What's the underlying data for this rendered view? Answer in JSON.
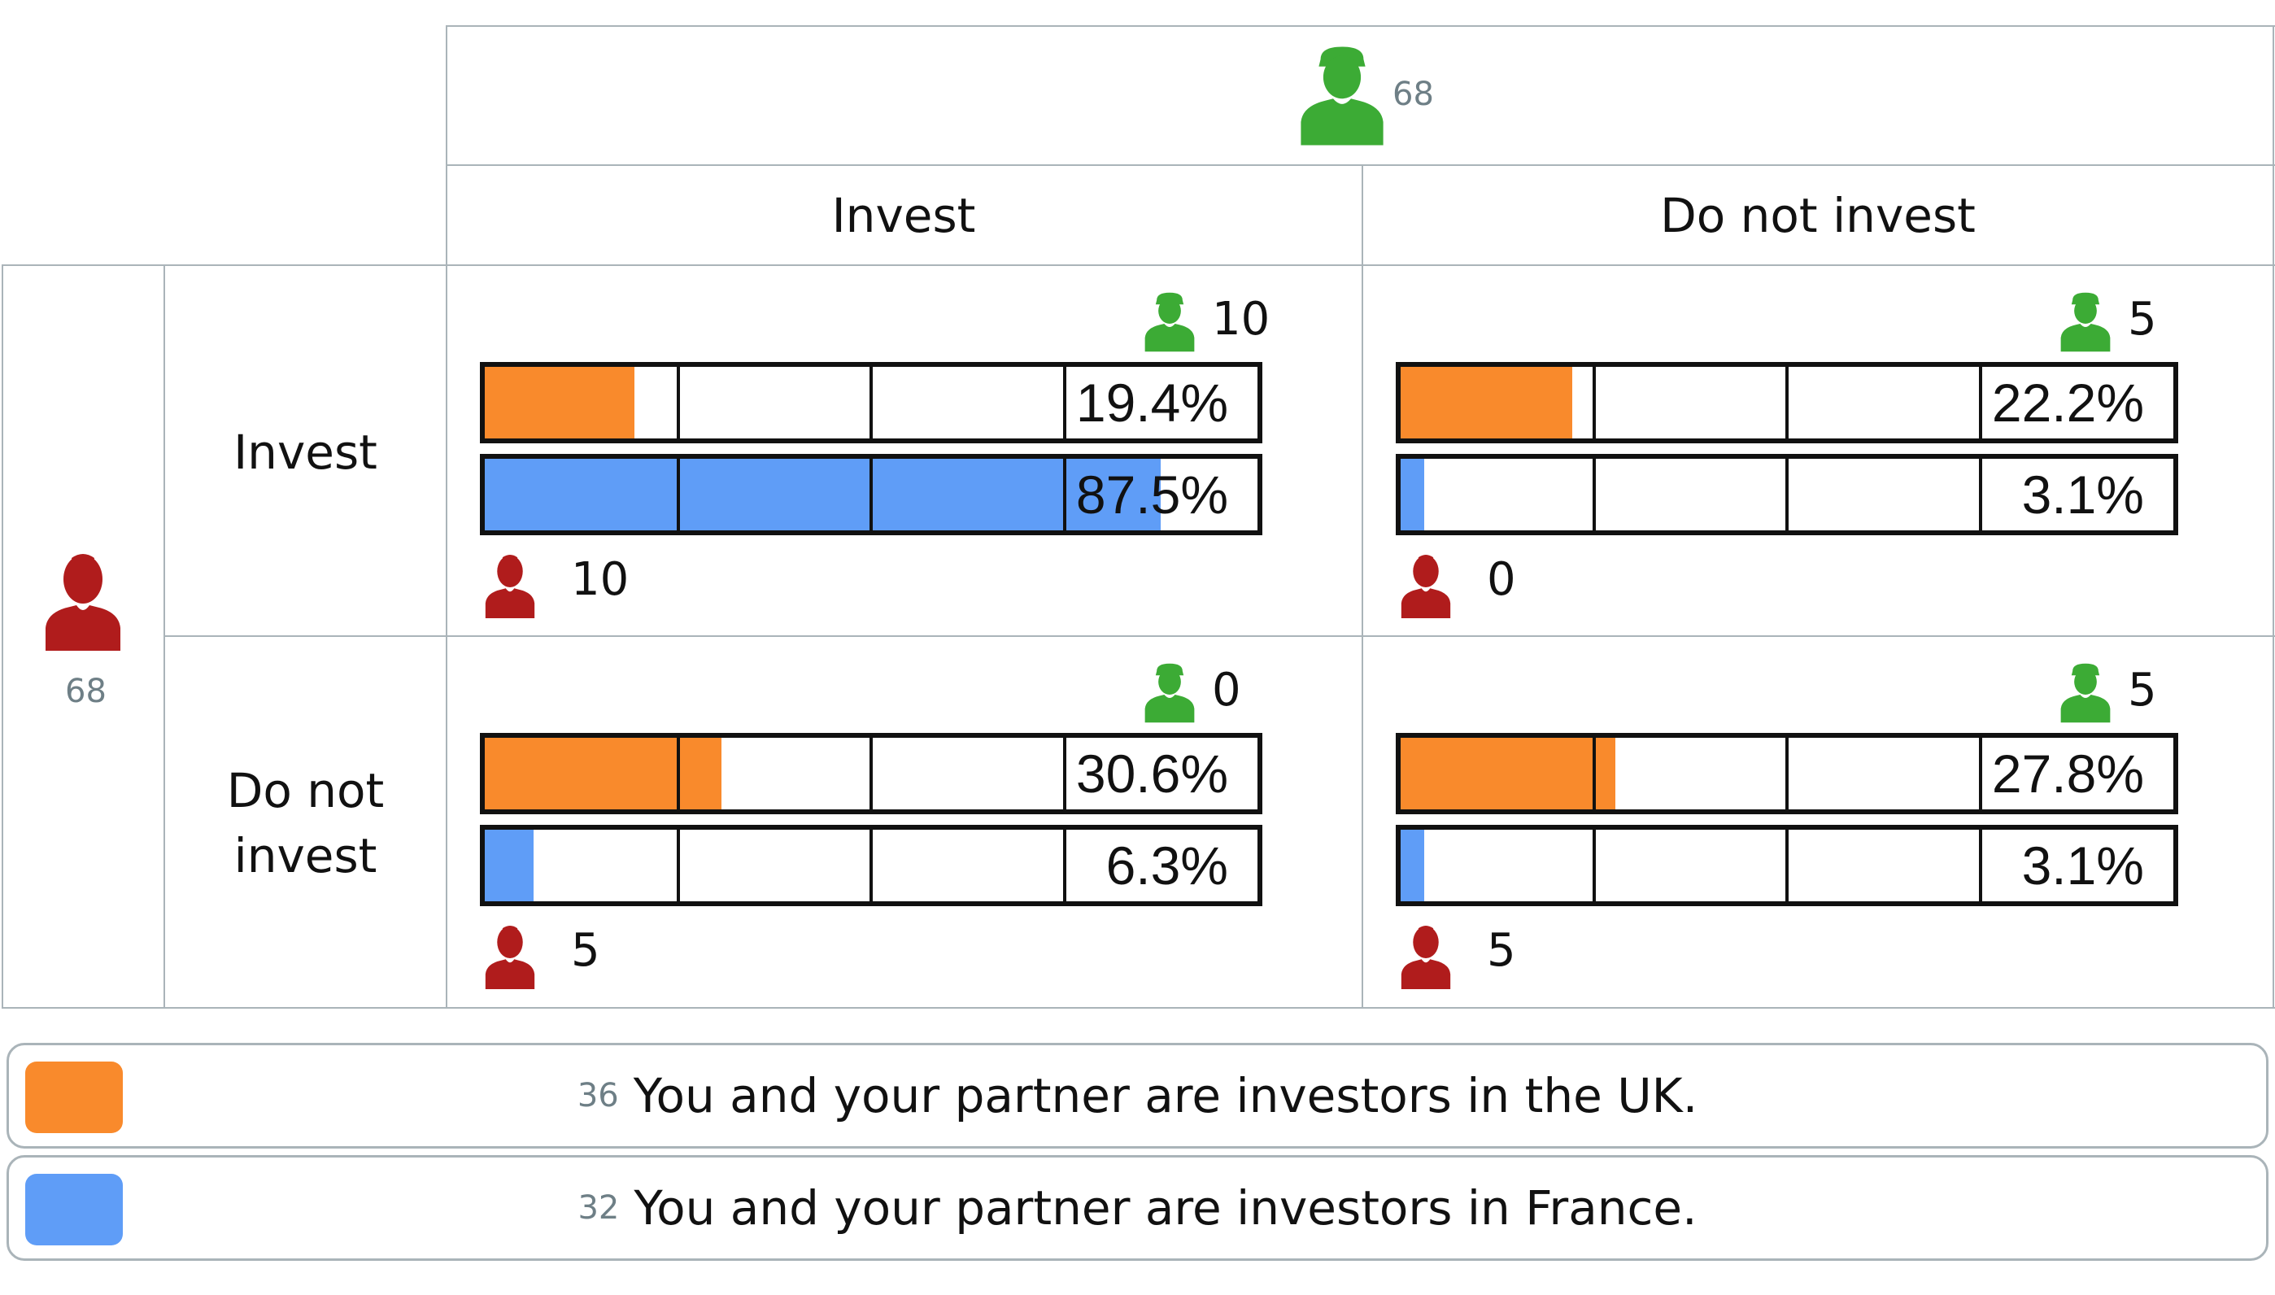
{
  "colors": {
    "orange": "#f98a2c",
    "blue": "#5f9df7",
    "green": "#3cab35",
    "red": "#b01c1c",
    "grid": "#aab4b9"
  },
  "top_player": {
    "icon": "green-person-icon",
    "count": "68"
  },
  "left_player": {
    "icon": "red-person-icon",
    "count": "68"
  },
  "column_headers": [
    "Invest",
    "Do not invest"
  ],
  "row_headers": [
    "Invest",
    "Do not\ninvest"
  ],
  "cells": [
    {
      "green_count": "10",
      "red_count": "10",
      "orange_label": "19.4%",
      "blue_label": "87.5%"
    },
    {
      "green_count": "5",
      "red_count": "0",
      "orange_label": "22.2%",
      "blue_label": "3.1%"
    },
    {
      "green_count": "0",
      "red_count": "5",
      "orange_label": "30.6%",
      "blue_label": "6.3%"
    },
    {
      "green_count": "5",
      "red_count": "5",
      "orange_label": "27.8%",
      "blue_label": "3.1%"
    }
  ],
  "legend": [
    {
      "color": "#f98a2c",
      "n": "36",
      "label": "You and your partner are investors in the UK."
    },
    {
      "color": "#5f9df7",
      "n": "32",
      "label": "You and your partner are investors in France."
    }
  ],
  "chart_data": {
    "type": "bar",
    "categories": [
      "Invest / Invest",
      "Invest / Do not invest",
      "Do not invest / Invest",
      "Do not invest / Do not invest"
    ],
    "series": [
      {
        "name": "You and your partner are investors in the UK.",
        "values": [
          19.4,
          22.2,
          30.6,
          27.8
        ]
      },
      {
        "name": "You and your partner are investors in France.",
        "values": [
          87.5,
          3.1,
          6.3,
          3.1
        ]
      }
    ],
    "xlim": [
      0,
      100
    ],
    "ylabel": "",
    "xlabel": ""
  }
}
